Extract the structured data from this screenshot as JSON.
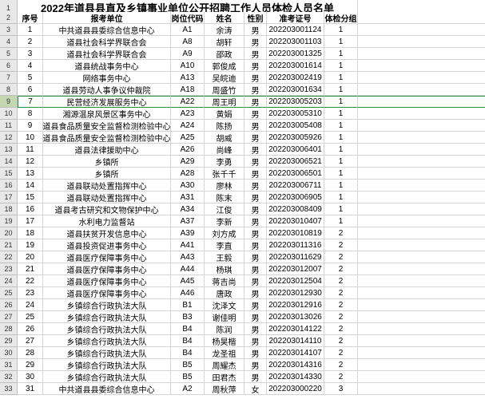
{
  "title": "2022年道县县直及乡镇事业单位公开招聘工作人员体检人员名单",
  "headers": {
    "seq": "序号",
    "unit": "报考单位",
    "post": "岗位代码",
    "name": "姓名",
    "gender": "性别",
    "exam_no": "准考证号",
    "group": "体检分组"
  },
  "colors": {
    "row_header_bg": "#e8e8e8",
    "row_header_selected": "#c4d8b0",
    "border": "#d4d4d4",
    "selection_border": "#2a8e3c",
    "text": "#000000"
  },
  "selected_row_index": 7,
  "rows": [
    {
      "n": 1,
      "unit": "中共道县县委综合信息中心",
      "post": "A1",
      "name": "余涛",
      "g": "男",
      "no": "202203001124",
      "grp": 1
    },
    {
      "n": 2,
      "unit": "道县社会科学界联合会",
      "post": "A8",
      "name": "胡轩",
      "g": "男",
      "no": "202203001103",
      "grp": 1
    },
    {
      "n": 3,
      "unit": "道县社会科学界联合会",
      "post": "A9",
      "name": "邵政",
      "g": "男",
      "no": "202203001325",
      "grp": 1
    },
    {
      "n": 4,
      "unit": "道县统战事务中心",
      "post": "A10",
      "name": "郭俊成",
      "g": "男",
      "no": "202203001614",
      "grp": 1
    },
    {
      "n": 5,
      "unit": "网络事务中心",
      "post": "A13",
      "name": "吴皖迪",
      "g": "男",
      "no": "202203002419",
      "grp": 1
    },
    {
      "n": 6,
      "unit": "道县劳动人事争议仲裁院",
      "post": "A18",
      "name": "周盛竹",
      "g": "男",
      "no": "202203001634",
      "grp": 1
    },
    {
      "n": 7,
      "unit": "民营经济发展服务中心",
      "post": "A22",
      "name": "周王明",
      "g": "男",
      "no": "202203005203",
      "grp": 1
    },
    {
      "n": 8,
      "unit": "湘源温泉风景区事务中心",
      "post": "A23",
      "name": "黄娟",
      "g": "男",
      "no": "202203005310",
      "grp": 1
    },
    {
      "n": 9,
      "unit": "道县食品质量安全监督检测检验中心",
      "post": "A24",
      "name": "陈扬",
      "g": "男",
      "no": "202203005408",
      "grp": 1
    },
    {
      "n": 10,
      "unit": "道县食品质量安全监督检测检验中心",
      "post": "A25",
      "name": "胡威",
      "g": "男",
      "no": "202203005926",
      "grp": 1
    },
    {
      "n": 11,
      "unit": "道县法律援助中心",
      "post": "A26",
      "name": "尚峰",
      "g": "男",
      "no": "202203006401",
      "grp": 1
    },
    {
      "n": 12,
      "unit": "乡镇所",
      "post": "A29",
      "name": "李勇",
      "g": "男",
      "no": "202203006521",
      "grp": 1
    },
    {
      "n": 13,
      "unit": "乡镇所",
      "post": "A28",
      "name": "张千千",
      "g": "男",
      "no": "202203006501",
      "grp": 1
    },
    {
      "n": 14,
      "unit": "道县联动处置指挥中心",
      "post": "A30",
      "name": "廖林",
      "g": "男",
      "no": "202203006711",
      "grp": 1
    },
    {
      "n": 15,
      "unit": "道县联动处置指挥中心",
      "post": "A31",
      "name": "陈末",
      "g": "男",
      "no": "202203006905",
      "grp": 1
    },
    {
      "n": 16,
      "unit": "道县考古研究和文物保护中心",
      "post": "A34",
      "name": "江俊",
      "g": "男",
      "no": "202203008409",
      "grp": 1
    },
    {
      "n": 17,
      "unit": "水利电力监督站",
      "post": "A37",
      "name": "李新",
      "g": "男",
      "no": "202203010407",
      "grp": 1
    },
    {
      "n": 18,
      "unit": "道县扶贫开发信息中心",
      "post": "A39",
      "name": "刘方成",
      "g": "男",
      "no": "202203010819",
      "grp": 2
    },
    {
      "n": 19,
      "unit": "道县投资促进事务中心",
      "post": "A41",
      "name": "李直",
      "g": "男",
      "no": "202203011316",
      "grp": 2
    },
    {
      "n": 20,
      "unit": "道县医疗保障事务中心",
      "post": "A43",
      "name": "王毅",
      "g": "男",
      "no": "202203011629",
      "grp": 2
    },
    {
      "n": 21,
      "unit": "道县医疗保障事务中心",
      "post": "A44",
      "name": "杨琪",
      "g": "男",
      "no": "202203012007",
      "grp": 2
    },
    {
      "n": 22,
      "unit": "道县医疗保障事务中心",
      "post": "A45",
      "name": "蒋吉尚",
      "g": "男",
      "no": "202203012504",
      "grp": 2
    },
    {
      "n": 23,
      "unit": "道县医疗保障事务中心",
      "post": "A46",
      "name": "唐政",
      "g": "男",
      "no": "202203012930",
      "grp": 2
    },
    {
      "n": 24,
      "unit": "乡镇综合行政执法大队",
      "post": "B1",
      "name": "沈泽文",
      "g": "男",
      "no": "202203012916",
      "grp": 2
    },
    {
      "n": 25,
      "unit": "乡镇综合行政执法大队",
      "post": "B3",
      "name": "谢佳明",
      "g": "男",
      "no": "202203013026",
      "grp": 2
    },
    {
      "n": 26,
      "unit": "乡镇综合行政执法大队",
      "post": "B4",
      "name": "陈润",
      "g": "男",
      "no": "202203014122",
      "grp": 2
    },
    {
      "n": 27,
      "unit": "乡镇综合行政执法大队",
      "post": "B4",
      "name": "杨昊楷",
      "g": "男",
      "no": "202203014110",
      "grp": 2
    },
    {
      "n": 28,
      "unit": "乡镇综合行政执法大队",
      "post": "B4",
      "name": "龙圣祖",
      "g": "男",
      "no": "202203014107",
      "grp": 2
    },
    {
      "n": 29,
      "unit": "乡镇综合行政执法大队",
      "post": "B5",
      "name": "周耀杰",
      "g": "男",
      "no": "202203014316",
      "grp": 2
    },
    {
      "n": 30,
      "unit": "乡镇综合行政执法大队",
      "post": "B5",
      "name": "田君杰",
      "g": "男",
      "no": "202203014330",
      "grp": 2
    },
    {
      "n": 31,
      "unit": "中共道县县委综合信息中心",
      "post": "A2",
      "name": "周秋萍",
      "g": "女",
      "no": "202203000220",
      "grp": 3
    }
  ]
}
